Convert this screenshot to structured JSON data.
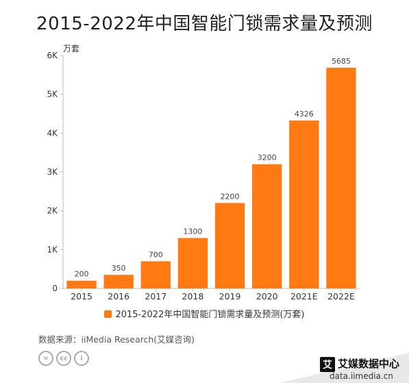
{
  "title": "2015-2022年中国智能门锁需求量及预测",
  "unit_label": "万套",
  "legend_label": "2015-2022年中国智能门锁需求量及预测(万套)",
  "source": "数据来源：iiMedia Research(艾媒咨询)",
  "brand": {
    "name": "艾媒数据中心",
    "url": "data.iimedia.cn",
    "logo_char": "艾"
  },
  "license_icons": [
    "equal-icon",
    "cc-icon",
    "person-icon"
  ],
  "colors": {
    "bar": "#ff7a13"
  },
  "chart_data": {
    "type": "bar",
    "title": "2015-2022年中国智能门锁需求量及预测",
    "categories": [
      "2015",
      "2016",
      "2017",
      "2018",
      "2019",
      "2020",
      "2021E",
      "2022E"
    ],
    "series": [
      {
        "name": "2015-2022年中国智能门锁需求量及预测(万套)",
        "values": [
          200,
          350,
          700,
          1300,
          2200,
          3200,
          4326,
          5685
        ]
      }
    ],
    "data_labels": [
      "200",
      "350",
      "700",
      "1300",
      "2200",
      "3200",
      "4326",
      "5685"
    ],
    "ylim": [
      0,
      6000
    ],
    "yticks": [
      0,
      1000,
      2000,
      3000,
      4000,
      5000,
      6000
    ],
    "ytick_labels": [
      "0",
      "1K",
      "2K",
      "3K",
      "4K",
      "5K",
      "6K"
    ],
    "ylabel": "万套",
    "xlabel": "",
    "grid": false,
    "legend_position": "bottom"
  }
}
